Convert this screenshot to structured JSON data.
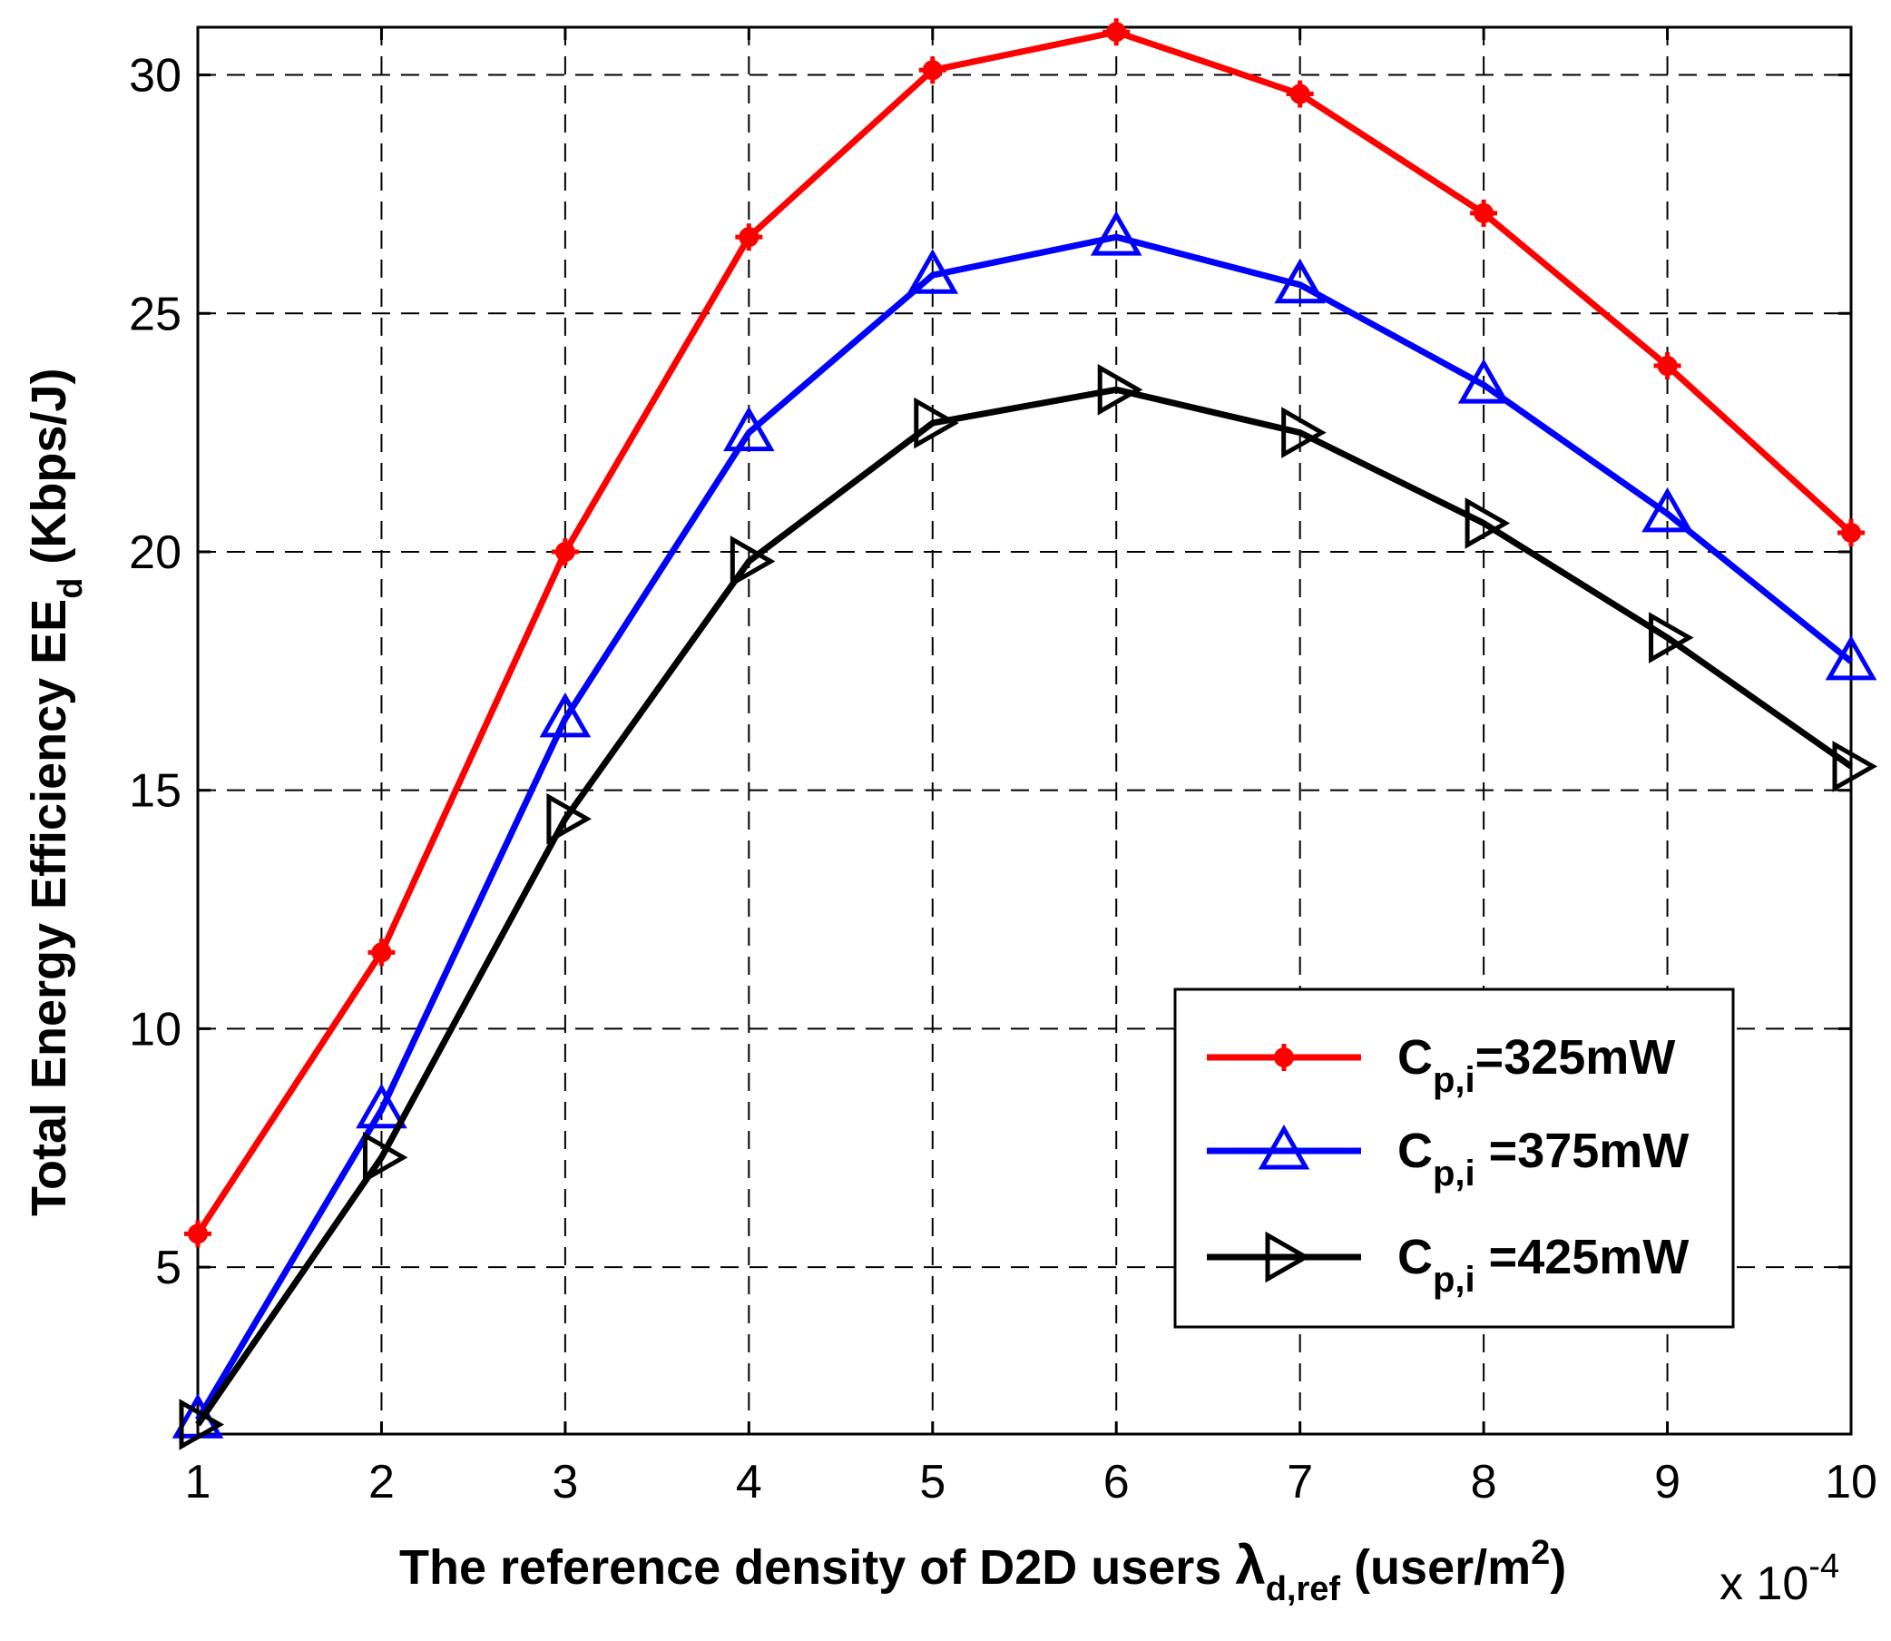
{
  "chart_data": {
    "type": "line",
    "x": [
      1,
      2,
      3,
      4,
      5,
      6,
      7,
      8,
      9,
      10
    ],
    "xlim": [
      1,
      10
    ],
    "ylim": [
      1.5,
      31
    ],
    "xticks": [
      "1",
      "2",
      "3",
      "4",
      "5",
      "6",
      "7",
      "8",
      "9",
      "10"
    ],
    "yticks": [
      "5",
      "10",
      "15",
      "20",
      "25",
      "30"
    ],
    "ytick_values": [
      5,
      10,
      15,
      20,
      25,
      30
    ],
    "x_multiplier": {
      "prefix": "x 10",
      "exponent": "-4"
    },
    "xlabel": {
      "main": "The reference density of D2D users ",
      "symbol": "λ",
      "subscript": "d,ref",
      "unit_open": " (user/m",
      "unit_sup": "2",
      "unit_close": ")"
    },
    "ylabel": {
      "main": "Total Energy Efficiency EE",
      "subscript": "d",
      "unit": " (Kbps/J)"
    },
    "grid": true,
    "legend_position": "bottom-right",
    "series": [
      {
        "name": "C_p,i=325mW",
        "label_main": "C",
        "label_sub": "p,i",
        "label_value": "=325mW",
        "color": "#ff0000",
        "marker": "plus-dot",
        "values": [
          5.7,
          11.6,
          20.0,
          26.6,
          30.1,
          30.9,
          29.6,
          27.1,
          23.9,
          20.4
        ]
      },
      {
        "name": "C_p,i =375mW",
        "label_main": "C",
        "label_sub": "p,i",
        "label_value": " =375mW",
        "color": "#0000ff",
        "marker": "triangle-up",
        "values": [
          1.8,
          8.3,
          16.5,
          22.5,
          25.8,
          26.6,
          25.6,
          23.5,
          20.8,
          17.7
        ]
      },
      {
        "name": "C_p,i =425mW",
        "label_main": "C",
        "label_sub": "p,i",
        "label_value": " =425mW",
        "color": "#000000",
        "marker": "triangle-right",
        "values": [
          1.7,
          7.3,
          14.4,
          19.8,
          22.7,
          23.4,
          22.5,
          20.6,
          18.2,
          15.5
        ]
      }
    ]
  }
}
